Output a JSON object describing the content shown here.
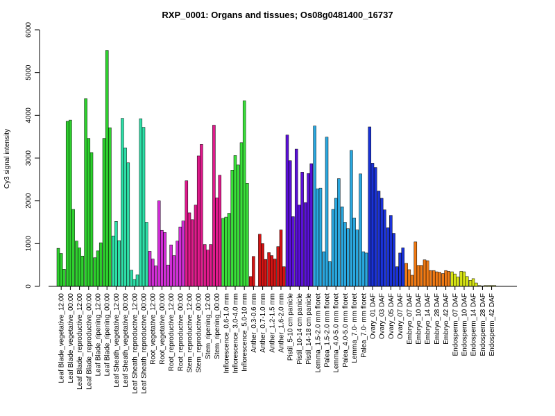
{
  "chart_data": {
    "type": "bar",
    "title": "RXP_0001: Organs and tissues; Os08g0481400_16737",
    "ylabel": "Cy3 signal intensity",
    "xlabel": "",
    "ylim": [
      0,
      6000
    ],
    "yticks": [
      0,
      1000,
      2000,
      3000,
      4000,
      5000,
      6000
    ],
    "grid": false,
    "categories": [
      "Leaf Blade_vegetative_12:00",
      "Leaf Blade_vegetative_00:00",
      "Leaf Blade_reproductive_12:00",
      "Leaf Blade_reproductive_00:00",
      "Leaf Blade_ripening_12:00",
      "Leaf Blade_ripening_00:00",
      "Leaf Sheath_vegetative_12:00",
      "Leaf Sheath_vegetative_00:00",
      "Leaf Sheath_reproductive_12:00",
      "Leaf Sheath_reproductive_00:00",
      "Root_vegetative_12:00",
      "Root_vegetative_00:00",
      "Root_reproductive_12:00",
      "Root_reproductive_00:00",
      "Stem_reproductive_12:00",
      "Stem_reproductive_00:00",
      "Stem_ripening_12:00",
      "Stem_ripening_00:00",
      "Inflorescence_0.6-1.0 mm",
      "Inflorescence_3.0-4.0 mm",
      "Inflorescence_5.0-10 mm",
      "Anther_0.3-0.6 mm",
      "Anther_0.7-1.0 mm",
      "Anther_1.2-1.5 mm",
      "Anther_1.6-2.0 mm",
      "Pistil_5-10 cm panicle",
      "Pistil_10-14 cm panicle",
      "Pistil_14-18 cm panicle",
      "Lemma_1.5-2.0 mm floret",
      "Palea_1.5-2.0 mm floret",
      "Lemma_4.0-5.0 mm floret",
      "Palea_4.0-5.0 mm floret",
      "Lemma_7.0- mm floret",
      "Palea_7.0- mm floret",
      "Ovary_01 DAF",
      "Ovary_03 DAF",
      "Ovary_05 DAF",
      "Ovary_07 DAF",
      "Embryo_07 DAF",
      "Embryo_10 DAF",
      "Embryo_14 DAF",
      "Embryo_28 DAF",
      "Embryo_42 DAF",
      "Endosperm_07 DAF",
      "Endosperm_10 DAF",
      "Endosperm_14 DAF",
      "Endosperm_28 DAF",
      "Endosperm_42 DAF"
    ],
    "group_colors": [
      "#2ed12e",
      "#2ed12e",
      "#2ed12e",
      "#2ed12e",
      "#2ed12e",
      "#2ed12e",
      "#2ee0a8",
      "#2ee0a8",
      "#2ee0a8",
      "#2ee0a8",
      "#d12ed6",
      "#d12ed6",
      "#d12ed6",
      "#d12ed6",
      "#e01a8c",
      "#e01a8c",
      "#e01a8c",
      "#e01a8c",
      "#3ae03a",
      "#3ae03a",
      "#3ae03a",
      "#d41414",
      "#d41414",
      "#d41414",
      "#d41414",
      "#5a10d8",
      "#5a10d8",
      "#5a10d8",
      "#2aa8e0",
      "#2aa8e0",
      "#2aa8e0",
      "#2aa8e0",
      "#2aa8e0",
      "#2aa8e0",
      "#1a32d8",
      "#1a32d8",
      "#1a32d8",
      "#1a32d8",
      "#f07a14",
      "#f07a14",
      "#f07a14",
      "#f07a14",
      "#f07a14",
      "#d8e614",
      "#d8e614",
      "#d8e614",
      "#d8e614",
      "#d8e614"
    ],
    "replicate_values": [
      [
        890,
        770,
        400
      ],
      [
        3860,
        3890,
        1800
      ],
      [
        1060,
        900,
        710
      ],
      [
        4390,
        3460,
        3130
      ],
      [
        670,
        830,
        1020
      ],
      [
        3460,
        5520,
        3710
      ],
      [
        1180,
        1520,
        1070
      ],
      [
        3930,
        3240,
        2890
      ],
      [
        380,
        160,
        270
      ],
      [
        3920,
        3720,
        1500
      ],
      [
        820,
        640,
        480
      ],
      [
        2000,
        1310,
        1260
      ],
      [
        500,
        970,
        720
      ],
      [
        1060,
        1390,
        1530
      ],
      [
        2470,
        1720,
        1560
      ],
      [
        1900,
        3050,
        3320
      ],
      [
        980,
        850,
        980
      ],
      [
        3770,
        2070,
        2600
      ],
      [
        1590,
        1620,
        1710
      ],
      [
        2720,
        3060,
        2840
      ],
      [
        3360,
        4340,
        2410
      ],
      [
        230,
        700,
        0
      ],
      [
        1220,
        1000,
        630
      ],
      [
        790,
        720,
        640
      ],
      [
        930,
        1320,
        460
      ],
      [
        3540,
        2940,
        1630
      ],
      [
        3210,
        1900,
        2670
      ],
      [
        1960,
        2640,
        2870
      ],
      [
        3750,
        2280,
        2300
      ],
      [
        810,
        3490,
        580
      ],
      [
        1800,
        2060,
        2520
      ],
      [
        1860,
        1500,
        1350
      ],
      [
        3180,
        1600,
        1320
      ],
      [
        2630,
        810,
        780
      ],
      [
        3730,
        2880,
        2780
      ],
      [
        2230,
        2060,
        1790
      ],
      [
        1370,
        1660,
        1240
      ],
      [
        460,
        780,
        900
      ],
      [
        540,
        390,
        260
      ],
      [
        1040,
        490,
        490
      ],
      [
        620,
        600,
        370
      ],
      [
        370,
        340,
        330
      ],
      [
        300,
        370,
        350
      ],
      [
        340,
        290,
        220
      ],
      [
        350,
        340,
        230
      ],
      [
        140,
        180,
        80
      ],
      [
        20,
        10,
        20
      ],
      [
        20,
        20,
        20
      ]
    ]
  }
}
